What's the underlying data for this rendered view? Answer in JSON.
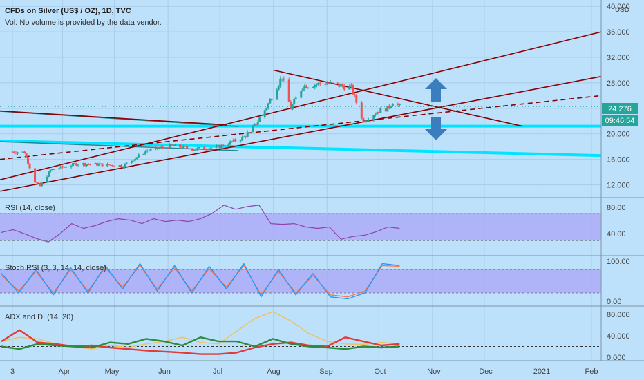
{
  "header": {
    "symbol_line": "CFDs on Silver (US$ / OZ), 1D, TVC",
    "volume_note": "Vol: No volume is provided by the data vendor."
  },
  "price_axis": {
    "currency": "USD",
    "ticks": [
      "40.000",
      "36.000",
      "32.000",
      "28.000",
      "24.000",
      "20.000",
      "16.000",
      "12.000"
    ],
    "last_price": "24.276",
    "countdown": "09:46:54"
  },
  "time_axis": {
    "labels": [
      "3",
      "Apr",
      "May",
      "Jun",
      "Jul",
      "Aug",
      "Sep",
      "Oct",
      "Nov",
      "Dec",
      "2021",
      "Feb"
    ]
  },
  "panes": {
    "rsi": {
      "title": "RSI (14, close)",
      "ticks": [
        "80.00",
        "40.00"
      ]
    },
    "stoch": {
      "title": "Stoch RSI (3, 3, 14, 14, close)",
      "ticks": [
        "100.00",
        "0.00"
      ]
    },
    "adx": {
      "title": "ADX and DI (14, 20)",
      "ticks": [
        "80.000",
        "40.000",
        "0.000"
      ]
    }
  },
  "colors": {
    "background": "#bde0fb",
    "candle_up": "#26a69a",
    "candle_down": "#ef5350",
    "trendline": "#8b0000",
    "support": "#00e5ff",
    "arrow": "#3a7ebf",
    "rsi": "#8e44ad",
    "stoch_k": "#2196f3",
    "stoch_d": "#ff7043",
    "adx": "#f0c05a",
    "di_plus": "#2e8b3d",
    "di_minus": "#e53935"
  },
  "chart_data": {
    "type": "candlestick",
    "instrument": "CFDs on Silver (US$ / OZ)",
    "interval": "1D",
    "ylim": [
      10,
      41
    ],
    "last_price": 24.276,
    "close_path": [
      {
        "x": "2020-03-03",
        "y": 17.2
      },
      {
        "x": "2020-03-10",
        "y": 17.1
      },
      {
        "x": "2020-03-16",
        "y": 12.5
      },
      {
        "x": "2020-03-19",
        "y": 11.8
      },
      {
        "x": "2020-03-25",
        "y": 14.3
      },
      {
        "x": "2020-04-09",
        "y": 15.3
      },
      {
        "x": "2020-04-21",
        "y": 15.2
      },
      {
        "x": "2020-05-06",
        "y": 15.0
      },
      {
        "x": "2020-05-20",
        "y": 17.4
      },
      {
        "x": "2020-06-03",
        "y": 18.1
      },
      {
        "x": "2020-06-17",
        "y": 17.6
      },
      {
        "x": "2020-07-01",
        "y": 18.0
      },
      {
        "x": "2020-07-15",
        "y": 19.5
      },
      {
        "x": "2020-07-22",
        "y": 21.6
      },
      {
        "x": "2020-07-28",
        "y": 24.2
      },
      {
        "x": "2020-08-06",
        "y": 29.0
      },
      {
        "x": "2020-08-11",
        "y": 24.0
      },
      {
        "x": "2020-08-18",
        "y": 27.5
      },
      {
        "x": "2020-09-01",
        "y": 28.0
      },
      {
        "x": "2020-09-15",
        "y": 27.2
      },
      {
        "x": "2020-09-22",
        "y": 22.0
      },
      {
        "x": "2020-09-30",
        "y": 23.5
      },
      {
        "x": "2020-10-06",
        "y": 24.0
      },
      {
        "x": "2020-10-09",
        "y": 25.0
      },
      {
        "x": "2020-10-13",
        "y": 24.3
      }
    ],
    "support_lines": [
      {
        "x1": "2020-03-03",
        "y1": 21.2,
        "x2": "2021-02-26",
        "y2": 21.2
      },
      {
        "x1": "2020-03-03",
        "y1": 18.9,
        "x2": "2021-02-26",
        "y2": 16.6
      }
    ],
    "trendlines": [
      {
        "x1": "2020-03-03",
        "y1": 12.8,
        "x2": "2021-02-26",
        "y2": 36.0
      },
      {
        "x1": "2020-03-03",
        "y1": 11.0,
        "x2": "2021-02-26",
        "y2": 29.0
      },
      {
        "x1": "2020-08-01",
        "y1": 30.0,
        "x2": "2020-12-23",
        "y2": 21.2
      },
      {
        "x1": "2020-03-03",
        "y1": 16.0,
        "x2": "2021-02-26",
        "y2": 26.0,
        "style": "dashed"
      },
      {
        "x1": "2020-03-03",
        "y1": 23.6,
        "x2": "2020-07-05",
        "y2": 21.4
      }
    ],
    "annotations": [
      "arrow-up",
      "arrow-down"
    ],
    "indicators": {
      "rsi": {
        "title": "RSI (14, close)",
        "bands": [
          70,
          30
        ],
        "ylim": [
          10,
          90
        ],
        "values": [
          42,
          46,
          40,
          33,
          28,
          40,
          55,
          48,
          52,
          58,
          62,
          60,
          55,
          62,
          58,
          60,
          58,
          62,
          70,
          82,
          76,
          80,
          82,
          55,
          54,
          55,
          50,
          48,
          50,
          32,
          36,
          38,
          43,
          50,
          48
        ]
      },
      "stoch_rsi": {
        "title": "Stoch RSI (3, 3, 14, 14, close)",
        "bands": [
          80,
          20
        ],
        "ylim": [
          -10,
          110
        ],
        "k": [
          70,
          20,
          80,
          15,
          85,
          20,
          90,
          30,
          95,
          25,
          90,
          20,
          88,
          30,
          95,
          10,
          80,
          15,
          70,
          10,
          5,
          20,
          95,
          90
        ],
        "d": [
          65,
          25,
          75,
          20,
          80,
          25,
          85,
          35,
          90,
          30,
          85,
          25,
          82,
          35,
          90,
          15,
          75,
          20,
          65,
          15,
          10,
          25,
          90,
          88
        ]
      },
      "adx_di": {
        "title": "ADX and DI (14, 20)",
        "level": 20,
        "ylim": [
          -5,
          95
        ],
        "adx": [
          30,
          38,
          35,
          25,
          20,
          15,
          22,
          18,
          25,
          30,
          38,
          28,
          25,
          50,
          75,
          88,
          70,
          45,
          30,
          25,
          24,
          28,
          25
        ],
        "di_plus": [
          20,
          15,
          25,
          22,
          20,
          18,
          28,
          25,
          35,
          30,
          22,
          38,
          30,
          30,
          20,
          35,
          25,
          20,
          18,
          15,
          20,
          18,
          20
        ],
        "di_minus": [
          30,
          52,
          28,
          25,
          20,
          22,
          18,
          15,
          12,
          10,
          8,
          5,
          5,
          8,
          18,
          25,
          28,
          22,
          20,
          38,
          30,
          22,
          25
        ]
      }
    }
  }
}
